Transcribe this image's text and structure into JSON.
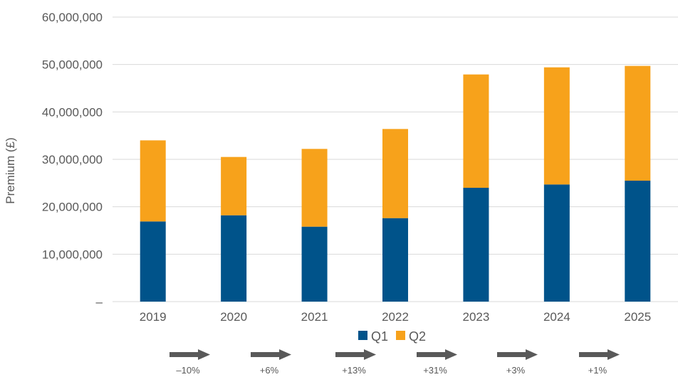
{
  "chart_data": {
    "type": "bar",
    "stacked": true,
    "categories": [
      "2019",
      "2020",
      "2021",
      "2022",
      "2023",
      "2024",
      "2025"
    ],
    "series": [
      {
        "name": "Q1",
        "color": "#00538A",
        "values": [
          16900000,
          18200000,
          15800000,
          17600000,
          24000000,
          24700000,
          25500000
        ]
      },
      {
        "name": "Q2",
        "color": "#F7A21B",
        "values": [
          17100000,
          12300000,
          16400000,
          18800000,
          23900000,
          24700000,
          24200000
        ]
      }
    ],
    "ylabel": "Premium (£)",
    "ylim": [
      0,
      60000000
    ],
    "yticks": [
      {
        "value": 0,
        "label": "–"
      },
      {
        "value": 10000000,
        "label": "10,000,000"
      },
      {
        "value": 20000000,
        "label": "20,000,000"
      },
      {
        "value": 30000000,
        "label": "30,000,000"
      },
      {
        "value": 40000000,
        "label": "40,000,000"
      },
      {
        "value": 50000000,
        "label": "50,000,000"
      },
      {
        "value": 60000000,
        "label": "60,000,000"
      }
    ],
    "grid": true,
    "legend_position": "bottom",
    "changes": [
      "–10%",
      "+6%",
      "+13%",
      "+31%",
      "+3%",
      "+1%"
    ],
    "gridline_color": "#D9D9D9",
    "arrow_color": "#595959"
  }
}
